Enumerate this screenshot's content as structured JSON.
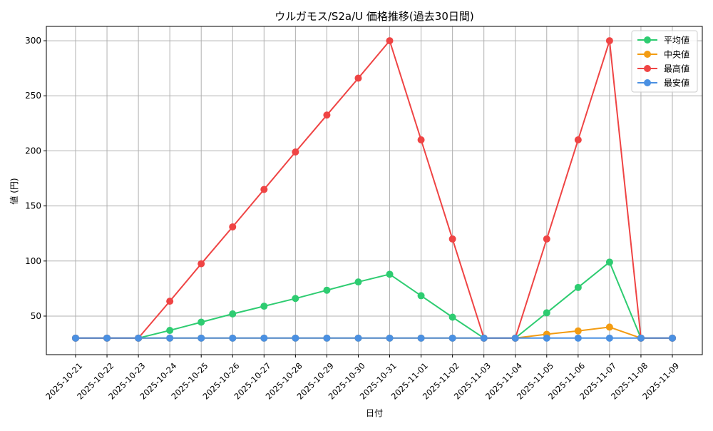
{
  "chart_data": {
    "type": "line",
    "title": "ウルガモス/S2a/U 価格推移(過去30日間)",
    "xlabel": "日付",
    "ylabel": "値 (円)",
    "categories": [
      "2025-10-21",
      "2025-10-22",
      "2025-10-23",
      "2025-10-24",
      "2025-10-25",
      "2025-10-26",
      "2025-10-27",
      "2025-10-28",
      "2025-10-29",
      "2025-10-30",
      "2025-10-31",
      "2025-11-01",
      "2025-11-02",
      "2025-11-03",
      "2025-11-04",
      "2025-11-05",
      "2025-11-06",
      "2025-11-07",
      "2025-11-08",
      "2025-11-09"
    ],
    "ylim": [
      15,
      313
    ],
    "yticks": [
      50,
      100,
      150,
      200,
      250,
      300
    ],
    "grid": true,
    "legend_position": "top-right",
    "series": [
      {
        "name": "平均値",
        "color": "#2ecc71",
        "values": [
          30,
          30,
          30,
          37,
          44.5,
          52,
          59,
          66,
          73.5,
          81,
          88,
          68.5,
          49,
          30,
          30,
          53,
          76,
          99,
          30,
          30
        ]
      },
      {
        "name": "中央値",
        "color": "#f39c12",
        "values": [
          30,
          30,
          30,
          30,
          30,
          30,
          30,
          30,
          30,
          30,
          30,
          30,
          30,
          30,
          30,
          33.5,
          36.5,
          40,
          30,
          30
        ]
      },
      {
        "name": "最高値",
        "color": "#ef4444",
        "values": [
          30,
          30,
          30,
          63.5,
          97.5,
          131,
          165,
          199,
          232.5,
          266,
          300,
          210,
          120,
          30,
          30,
          120,
          210,
          300,
          30,
          30
        ]
      },
      {
        "name": "最安値",
        "color": "#4a90e2",
        "values": [
          30,
          30,
          30,
          30,
          30,
          30,
          30,
          30,
          30,
          30,
          30,
          30,
          30,
          30,
          30,
          30,
          30,
          30,
          30,
          30
        ]
      }
    ]
  }
}
